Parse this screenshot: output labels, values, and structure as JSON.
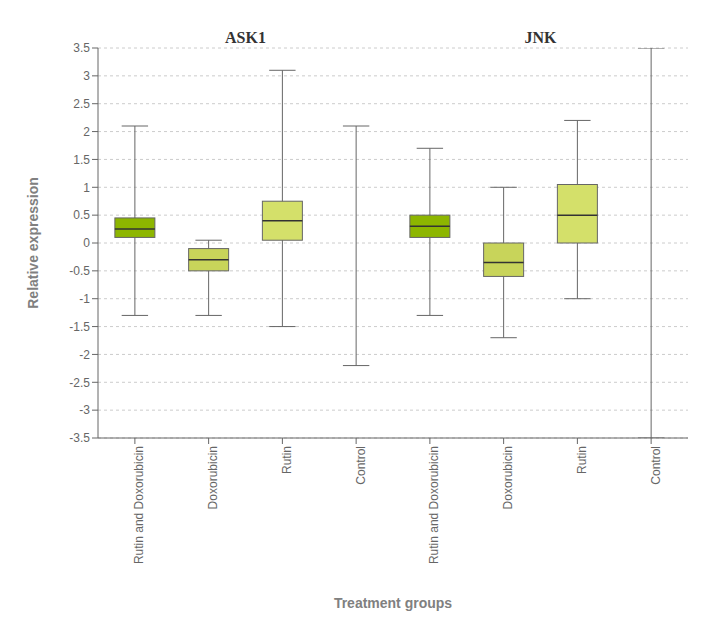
{
  "chart_data": {
    "type": "box",
    "xlabel": "Treatment groups",
    "ylabel": "Relative expression",
    "ylim": [
      -3.5,
      3.5
    ],
    "yticks": [
      -3.5,
      -3.0,
      -2.5,
      -2.0,
      -1.5,
      -1.0,
      -0.5,
      0.0,
      0.5,
      1.0,
      1.5,
      2.0,
      2.5,
      3.0,
      3.5
    ],
    "grid": true,
    "groups": [
      {
        "name": "ASK1",
        "categories": [
          "Rutin and Doxorubicin",
          "Doxorubicin",
          "Rutin",
          "Control"
        ],
        "boxes": [
          {
            "q1": 0.1,
            "median": 0.25,
            "q3": 0.45,
            "whislo": -1.3,
            "whishi": 2.1,
            "color": "#8db600"
          },
          {
            "q1": -0.5,
            "median": -0.3,
            "q3": -0.1,
            "whislo": -1.3,
            "whishi": 0.05,
            "color": "#c8d45a"
          },
          {
            "q1": 0.05,
            "median": 0.4,
            "q3": 0.75,
            "whislo": -1.5,
            "whishi": 3.1,
            "color": "#d4e06a"
          },
          {
            "q1": null,
            "median": null,
            "q3": null,
            "whislo": -2.2,
            "whishi": 2.1
          }
        ]
      },
      {
        "name": "JNK",
        "categories": [
          "Rutin and Doxorubicin",
          "Doxorubicin",
          "Rutin",
          "Control"
        ],
        "boxes": [
          {
            "q1": 0.1,
            "median": 0.3,
            "q3": 0.5,
            "whislo": -1.3,
            "whishi": 1.7,
            "color": "#8db600"
          },
          {
            "q1": -0.6,
            "median": -0.35,
            "q3": 0.0,
            "whislo": -1.7,
            "whishi": 1.0,
            "color": "#c8d45a"
          },
          {
            "q1": 0.0,
            "median": 0.5,
            "q3": 1.05,
            "whislo": -1.0,
            "whishi": 2.2,
            "color": "#d4e06a"
          },
          {
            "q1": null,
            "median": null,
            "q3": null,
            "whislo": -3.5,
            "whishi": 3.5
          }
        ]
      }
    ]
  }
}
